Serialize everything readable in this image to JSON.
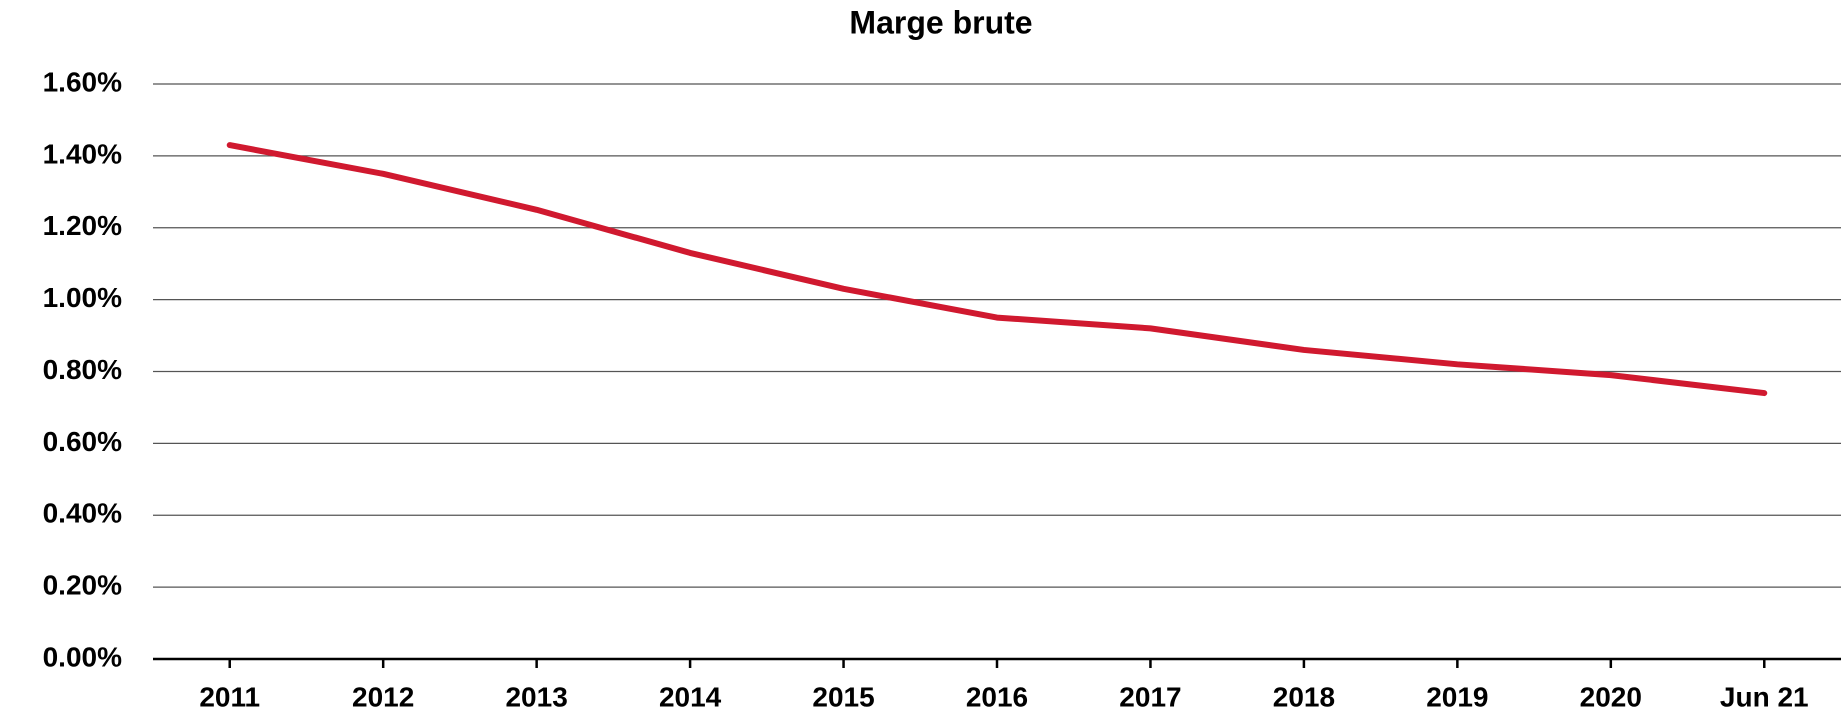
{
  "chart_data": {
    "type": "line",
    "title": "Marge brute",
    "categories": [
      "2011",
      "2012",
      "2013",
      "2014",
      "2015",
      "2016",
      "2017",
      "2018",
      "2019",
      "2020",
      "Jun 21"
    ],
    "series": [
      {
        "name": "Marge brute",
        "color": "#d0192f",
        "values": [
          1.43,
          1.35,
          1.25,
          1.13,
          1.03,
          0.95,
          0.92,
          0.86,
          0.82,
          0.79,
          0.74
        ]
      }
    ],
    "ylim": [
      0,
      1.6
    ],
    "yticks": [
      {
        "value": 0,
        "label": "0.00%"
      },
      {
        "value": 0.2,
        "label": "0.20%"
      },
      {
        "value": 0.4,
        "label": "0.40%"
      },
      {
        "value": 0.6,
        "label": "0.60%"
      },
      {
        "value": 0.8,
        "label": "0.80%"
      },
      {
        "value": 1.0,
        "label": "1.00%"
      },
      {
        "value": 1.2,
        "label": "1.20%"
      },
      {
        "value": 1.4,
        "label": "1.40%"
      },
      {
        "value": 1.6,
        "label": "1.60%"
      }
    ],
    "grid": true
  }
}
